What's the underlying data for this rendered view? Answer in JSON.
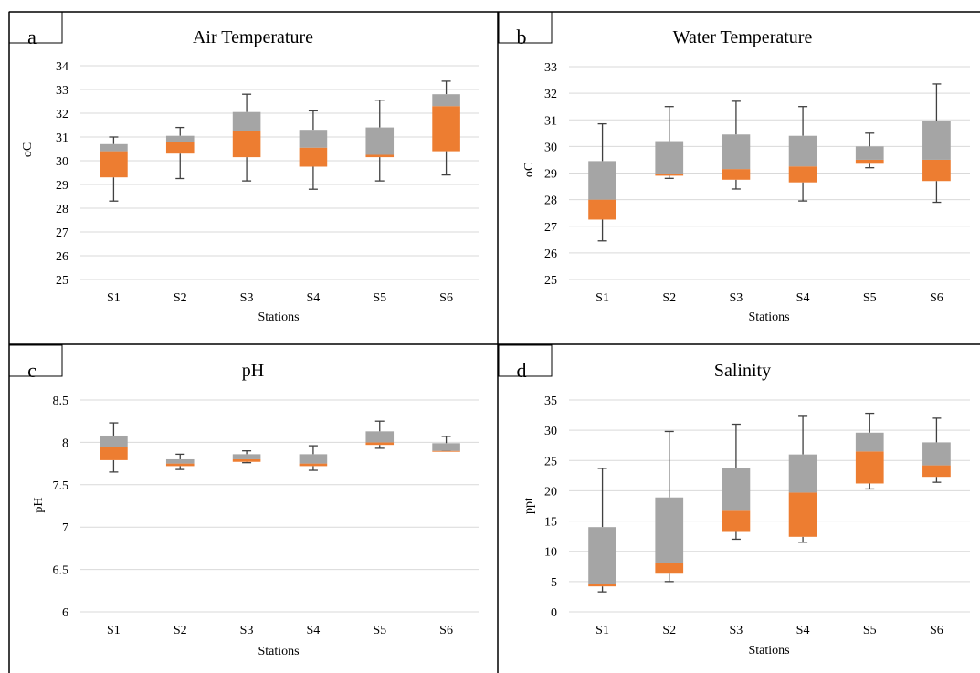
{
  "colors": {
    "upper_box": "#a5a5a5",
    "lower_box": "#ed7d31",
    "whisker": "#404040",
    "gridline": "#d9d9d9",
    "border": "#000000"
  },
  "chart_data": [
    {
      "type": "box",
      "panel_label": "a",
      "title": "Air Temperature",
      "xlabel": "Stations",
      "ylabel": "oC",
      "ylim": [
        25,
        34
      ],
      "yticks": [
        "25",
        "26",
        "27",
        "28",
        "29",
        "30",
        "31",
        "32",
        "33",
        "34"
      ],
      "grid": true,
      "categories": [
        "S1",
        "S2",
        "S3",
        "S4",
        "S5",
        "S6"
      ],
      "min": [
        28.3,
        29.25,
        29.15,
        28.8,
        29.15,
        29.4
      ],
      "q1": [
        29.3,
        30.3,
        30.15,
        29.75,
        30.15,
        30.4
      ],
      "median": [
        30.4,
        30.8,
        31.25,
        30.55,
        30.25,
        32.3
      ],
      "q3": [
        30.7,
        31.05,
        32.05,
        31.3,
        31.4,
        32.8
      ],
      "max": [
        31.0,
        31.4,
        32.8,
        32.1,
        32.55,
        33.35
      ]
    },
    {
      "type": "box",
      "panel_label": "b",
      "title": "Water Temperature",
      "xlabel": "Stations",
      "ylabel": "oC",
      "ylim": [
        25,
        33
      ],
      "yticks": [
        "25",
        "26",
        "27",
        "28",
        "29",
        "30",
        "31",
        "32",
        "33"
      ],
      "grid": true,
      "categories": [
        "S1",
        "S2",
        "S3",
        "S4",
        "S5",
        "S6"
      ],
      "min": [
        26.45,
        28.8,
        28.4,
        27.95,
        29.2,
        27.9
      ],
      "q1": [
        27.25,
        28.9,
        28.75,
        28.65,
        29.35,
        28.7
      ],
      "median": [
        28.0,
        28.95,
        29.15,
        29.25,
        29.5,
        29.5
      ],
      "q3": [
        29.45,
        30.2,
        30.45,
        30.4,
        30.0,
        30.95
      ],
      "max": [
        30.85,
        31.5,
        31.7,
        31.5,
        30.5,
        32.35
      ]
    },
    {
      "type": "box",
      "panel_label": "c",
      "title": "pH",
      "xlabel": "Stations",
      "ylabel": "pH",
      "ylim": [
        6,
        8.5
      ],
      "yticks": [
        "6",
        "6.5",
        "7",
        "7.5",
        "8",
        "8.5"
      ],
      "grid": true,
      "categories": [
        "S1",
        "S2",
        "S3",
        "S4",
        "S5",
        "S6"
      ],
      "min": [
        7.65,
        7.68,
        7.76,
        7.67,
        7.93,
        7.9
      ],
      "q1": [
        7.79,
        7.72,
        7.77,
        7.72,
        7.97,
        7.9
      ],
      "median": [
        7.94,
        7.75,
        7.8,
        7.75,
        8.0,
        7.9
      ],
      "q3": [
        8.08,
        7.8,
        7.86,
        7.86,
        8.13,
        7.99
      ],
      "max": [
        8.23,
        7.86,
        7.9,
        7.96,
        8.25,
        8.07
      ]
    },
    {
      "type": "box",
      "panel_label": "d",
      "title": "Salinity",
      "xlabel": "Stations",
      "ylabel": "ppt",
      "ylim": [
        0,
        35
      ],
      "yticks": [
        "0",
        "5",
        "10",
        "15",
        "20",
        "25",
        "30",
        "35"
      ],
      "grid": true,
      "categories": [
        "S1",
        "S2",
        "S3",
        "S4",
        "S5",
        "S6"
      ],
      "min": [
        3.3,
        5.0,
        12.0,
        11.5,
        20.3,
        21.4
      ],
      "q1": [
        4.2,
        6.3,
        13.2,
        12.4,
        21.2,
        22.3
      ],
      "median": [
        4.6,
        8.0,
        16.7,
        19.7,
        26.5,
        24.2
      ],
      "q3": [
        14.0,
        18.9,
        23.8,
        26.0,
        29.6,
        28.0
      ],
      "max": [
        23.7,
        29.8,
        31.0,
        32.3,
        32.8,
        32.0
      ]
    }
  ]
}
